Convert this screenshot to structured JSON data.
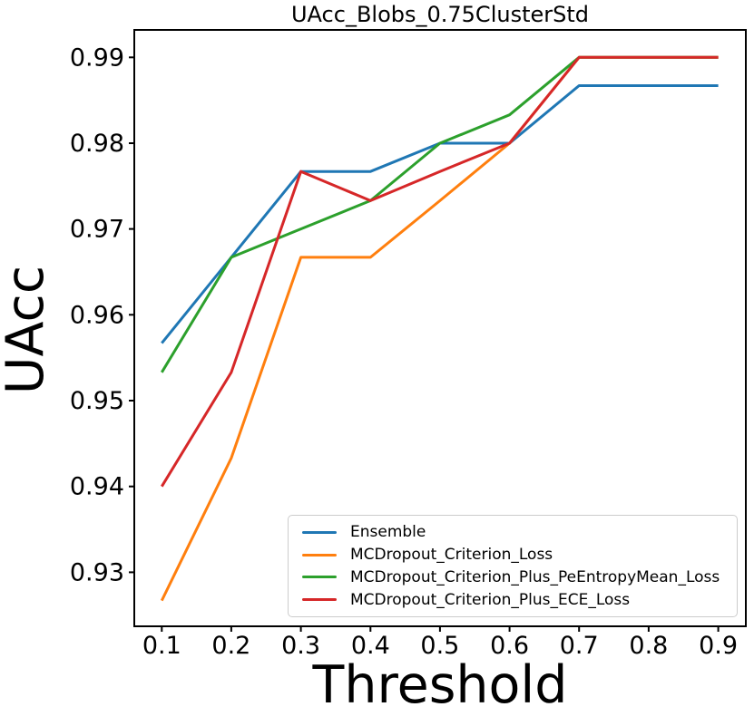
{
  "chart_data": {
    "type": "line",
    "title": "UAcc_Blobs_0.75ClusterStd",
    "xlabel": "Threshold",
    "ylabel": "UAcc",
    "x": [
      0.1,
      0.2,
      0.3,
      0.4,
      0.5,
      0.6,
      0.7,
      0.8,
      0.9
    ],
    "series": [
      {
        "name": "Ensemble",
        "color": "#1f77b4",
        "values": [
          0.9567,
          0.9667,
          0.9767,
          0.9767,
          0.98,
          0.98,
          0.9867,
          0.9867,
          0.9867
        ]
      },
      {
        "name": "MCDropout_Criterion_Loss",
        "color": "#ff7f0e",
        "values": [
          0.9267,
          0.9433,
          0.9667,
          0.9667,
          0.9733,
          0.98,
          0.99,
          0.99,
          0.99
        ]
      },
      {
        "name": "MCDropout_Criterion_Plus_PeEntropyMean_Loss",
        "color": "#2ca02c",
        "values": [
          0.9533,
          0.9667,
          0.97,
          0.9733,
          0.98,
          0.9833,
          0.99,
          0.99,
          0.99
        ]
      },
      {
        "name": "MCDropout_Criterion_Plus_ECE_Loss",
        "color": "#d62728",
        "values": [
          0.94,
          0.9533,
          0.9767,
          0.9733,
          0.9767,
          0.98,
          0.99,
          0.99,
          0.99
        ]
      }
    ],
    "xlim": [
      0.0605,
      0.9397
    ],
    "ylim": [
      0.9237,
      0.9932
    ],
    "xticks": [
      0.1,
      0.2,
      0.3,
      0.4,
      0.5,
      0.6,
      0.7,
      0.8,
      0.9
    ],
    "xtick_labels": [
      "0.1",
      "0.2",
      "0.3",
      "0.4",
      "0.5",
      "0.6",
      "0.7",
      "0.8",
      "0.9"
    ],
    "yticks": [
      0.93,
      0.94,
      0.95,
      0.96,
      0.97,
      0.98,
      0.99
    ],
    "ytick_labels": [
      "0.93",
      "0.94",
      "0.95",
      "0.96",
      "0.97",
      "0.98",
      "0.99"
    ],
    "grid": false,
    "legend_position": "lower right"
  }
}
